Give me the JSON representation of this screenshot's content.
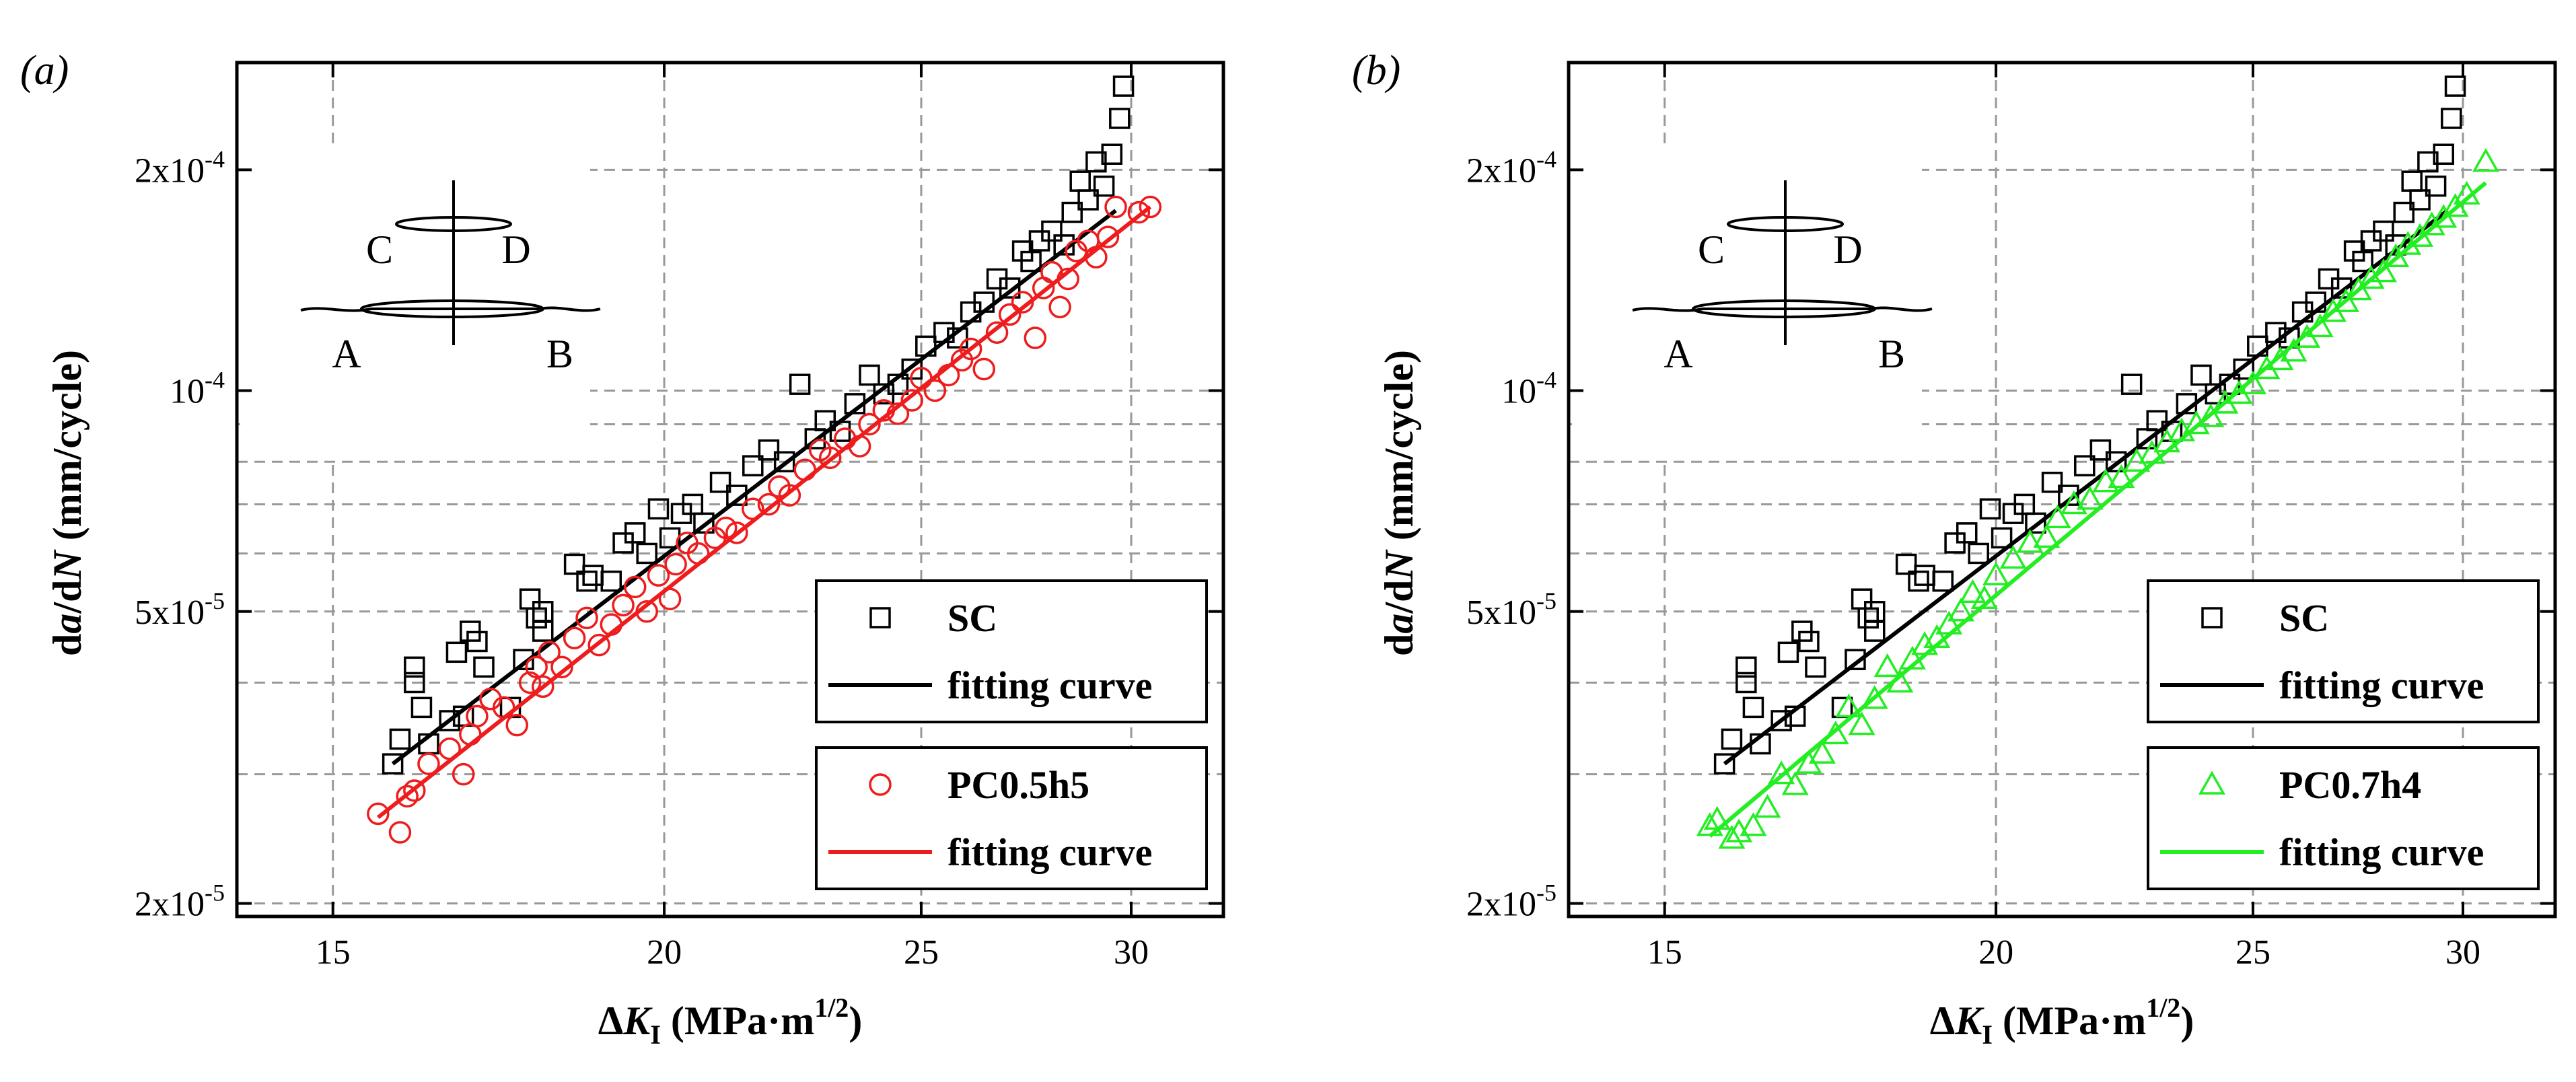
{
  "chart_data": [
    {
      "type": "scatter",
      "panel_label": "(a)",
      "xlabel": {
        "prefix": "Δ",
        "var": "K",
        "sub": "I",
        "units_pre": " (MPa·m",
        "sup": "1/2",
        "units_post": ")"
      },
      "ylabel": {
        "pre": "d",
        "var1": "a",
        "mid": "/d",
        "var2": "N",
        "post": " (mm/cycle)"
      },
      "x_scale": "log",
      "y_scale": "log",
      "xlim": [
        13.8,
        32.5
      ],
      "ylim": [
        1.92e-05,
        0.00028
      ],
      "xticks": [
        {
          "value": 15,
          "label": "15"
        },
        {
          "value": 20,
          "label": "20"
        },
        {
          "value": 25,
          "label": "25"
        },
        {
          "value": 30,
          "label": "30"
        }
      ],
      "yticks": [
        {
          "value": 2e-05,
          "base": "2x10",
          "exp": "-5"
        },
        {
          "value": 5e-05,
          "base": "5x10",
          "exp": "-5"
        },
        {
          "value": 0.0001,
          "base": "10",
          "exp": "-4"
        },
        {
          "value": 0.0002,
          "base": "2x10",
          "exp": "-4"
        }
      ],
      "inset_labels": [
        "C",
        "D",
        "A",
        "B"
      ],
      "series": [
        {
          "name": "SC",
          "marker": "square",
          "color": "#000000",
          "x": [
            15.8,
            15.9,
            16.1,
            16.1,
            16.2,
            16.3,
            16.6,
            16.7,
            16.8,
            16.9,
            17.0,
            17.1,
            17.5,
            17.7,
            17.8,
            17.9,
            18.0,
            18.0,
            18.5,
            18.7,
            18.8,
            19.1,
            19.3,
            19.5,
            19.7,
            19.9,
            20.1,
            20.3,
            20.5,
            20.7,
            21.0,
            21.3,
            21.6,
            21.9,
            22.2,
            22.5,
            22.8,
            23.0,
            23.3,
            23.6,
            23.9,
            24.2,
            24.5,
            24.8,
            25.1,
            25.5,
            25.8,
            26.1,
            26.4,
            26.7,
            27.0,
            27.3,
            27.5,
            27.7,
            28.0,
            28.3,
            28.5,
            28.7,
            28.9,
            29.1,
            29.3,
            29.5,
            29.7,
            29.8
          ],
          "y": [
            3.1e-05,
            3.35e-05,
            4.2e-05,
            4e-05,
            3.7e-05,
            3.3e-05,
            3.55e-05,
            4.4e-05,
            3.6e-05,
            4.7e-05,
            4.55e-05,
            4.2e-05,
            3.7e-05,
            4.3e-05,
            5.2e-05,
            4.9e-05,
            5e-05,
            4.7e-05,
            5.8e-05,
            5.5e-05,
            5.6e-05,
            5.5e-05,
            6.2e-05,
            6.4e-05,
            6e-05,
            6.9e-05,
            6.3e-05,
            6.8e-05,
            7e-05,
            6.6e-05,
            7.5e-05,
            7.2e-05,
            7.9e-05,
            8.3e-05,
            8e-05,
            0.000102,
            8.6e-05,
            9.1e-05,
            8.8e-05,
            9.6e-05,
            0.000105,
            9.9e-05,
            0.000102,
            0.000107,
            0.000115,
            0.00012,
            0.000118,
            0.000128,
            0.000132,
            0.000142,
            0.000138,
            0.000155,
            0.00015,
            0.00016,
            0.000165,
            0.000158,
            0.000175,
            0.000193,
            0.000182,
            0.000205,
            0.00019,
            0.00021,
            0.000235,
            0.00026
          ]
        },
        {
          "name": "fitting curve",
          "kind": "line",
          "color": "#000000",
          "x": [
            15.8,
            29.6
          ],
          "y": [
            3.1e-05,
            0.000176
          ]
        },
        {
          "name": "PC0.5h5",
          "marker": "circle",
          "color": "#ee1c1c",
          "x": [
            15.6,
            15.9,
            16.0,
            16.1,
            16.3,
            16.6,
            16.8,
            16.9,
            17.0,
            17.2,
            17.4,
            17.6,
            17.8,
            17.9,
            18.0,
            18.1,
            18.3,
            18.5,
            18.7,
            18.9,
            19.1,
            19.3,
            19.5,
            19.7,
            19.9,
            20.1,
            20.2,
            20.4,
            20.6,
            20.9,
            21.1,
            21.3,
            21.6,
            21.9,
            22.1,
            22.3,
            22.6,
            22.9,
            23.1,
            23.4,
            23.7,
            23.9,
            24.2,
            24.5,
            24.8,
            25.0,
            25.3,
            25.6,
            25.9,
            26.1,
            26.4,
            26.7,
            27.0,
            27.3,
            27.6,
            27.8,
            28.0,
            28.2,
            28.4,
            28.6,
            28.9,
            29.1,
            29.4,
            29.6,
            30.2,
            30.5
          ],
          "y": [
            2.65e-05,
            2.5e-05,
            2.8e-05,
            2.85e-05,
            3.1e-05,
            3.25e-05,
            3e-05,
            3.4e-05,
            3.6e-05,
            3.8e-05,
            3.7e-05,
            3.5e-05,
            4e-05,
            4.2e-05,
            3.95e-05,
            4.4e-05,
            4.2e-05,
            4.6e-05,
            4.9e-05,
            4.5e-05,
            4.8e-05,
            5.1e-05,
            5.4e-05,
            5e-05,
            5.6e-05,
            5.2e-05,
            5.8e-05,
            6.2e-05,
            6e-05,
            6.3e-05,
            6.5e-05,
            6.4e-05,
            6.9e-05,
            7e-05,
            7.4e-05,
            7.2e-05,
            7.8e-05,
            8.3e-05,
            8.1e-05,
            8.6e-05,
            8.4e-05,
            9e-05,
            9.4e-05,
            9.3e-05,
            9.7e-05,
            0.000104,
            0.0001,
            0.000105,
            0.00011,
            0.000114,
            0.000107,
            0.00012,
            0.000127,
            0.000132,
            0.000118,
            0.000138,
            0.000145,
            0.00013,
            0.000142,
            0.000155,
            0.00016,
            0.000152,
            0.000162,
            0.000178,
            0.000175,
            0.000178
          ]
        },
        {
          "name": "fitting curve",
          "kind": "line",
          "color": "#ee1c1c",
          "x": [
            15.6,
            30.5
          ],
          "y": [
            2.62e-05,
            0.000178
          ]
        }
      ],
      "legend": [
        {
          "entries": [
            {
              "marker": "square",
              "color": "#000000",
              "label": "SC"
            },
            {
              "line": true,
              "color": "#000000",
              "label": "fitting curve"
            }
          ]
        },
        {
          "entries": [
            {
              "marker": "circle",
              "color": "#ee1c1c",
              "label": "PC0.5h5"
            },
            {
              "line": true,
              "color": "#ee1c1c",
              "label": "fitting curve"
            }
          ]
        }
      ]
    },
    {
      "type": "scatter",
      "panel_label": "(b)",
      "xlabel": {
        "prefix": "Δ",
        "var": "K",
        "sub": "I",
        "units_pre": " (MPa·m",
        "sup": "1/2",
        "units_post": ")"
      },
      "ylabel": {
        "pre": "d",
        "var1": "a",
        "mid": "/d",
        "var2": "N",
        "post": " (mm/cycle)"
      },
      "x_scale": "log",
      "y_scale": "log",
      "xlim": [
        13.8,
        32.5
      ],
      "ylim": [
        1.92e-05,
        0.00028
      ],
      "xticks": [
        {
          "value": 15,
          "label": "15"
        },
        {
          "value": 20,
          "label": "20"
        },
        {
          "value": 25,
          "label": "25"
        },
        {
          "value": 30,
          "label": "30"
        }
      ],
      "yticks": [
        {
          "value": 2e-05,
          "base": "2x10",
          "exp": "-5"
        },
        {
          "value": 5e-05,
          "base": "5x10",
          "exp": "-5"
        },
        {
          "value": 0.0001,
          "base": "10",
          "exp": "-4"
        },
        {
          "value": 0.0002,
          "base": "2x10",
          "exp": "-4"
        }
      ],
      "inset_labels": [
        "C",
        "D",
        "A",
        "B"
      ],
      "series": [
        {
          "name": "SC",
          "marker": "square",
          "color": "#000000",
          "x": [
            15.8,
            15.9,
            16.1,
            16.1,
            16.2,
            16.3,
            16.6,
            16.7,
            16.8,
            16.9,
            17.0,
            17.1,
            17.5,
            17.7,
            17.8,
            17.9,
            18.0,
            18.0,
            18.5,
            18.7,
            18.8,
            19.1,
            19.3,
            19.5,
            19.7,
            19.9,
            20.1,
            20.3,
            20.5,
            20.7,
            21.0,
            21.3,
            21.6,
            21.9,
            22.2,
            22.5,
            22.8,
            23.0,
            23.3,
            23.6,
            23.9,
            24.2,
            24.5,
            24.8,
            25.1,
            25.5,
            25.8,
            26.1,
            26.4,
            26.7,
            27.0,
            27.3,
            27.5,
            27.7,
            28.0,
            28.3,
            28.5,
            28.7,
            28.9,
            29.1,
            29.3,
            29.5,
            29.7,
            29.8
          ],
          "y": [
            3.1e-05,
            3.35e-05,
            4.2e-05,
            4e-05,
            3.7e-05,
            3.3e-05,
            3.55e-05,
            4.4e-05,
            3.6e-05,
            4.7e-05,
            4.55e-05,
            4.2e-05,
            3.7e-05,
            4.3e-05,
            5.2e-05,
            4.9e-05,
            5e-05,
            4.7e-05,
            5.8e-05,
            5.5e-05,
            5.6e-05,
            5.5e-05,
            6.2e-05,
            6.4e-05,
            6e-05,
            6.9e-05,
            6.3e-05,
            6.8e-05,
            7e-05,
            6.6e-05,
            7.5e-05,
            7.2e-05,
            7.9e-05,
            8.3e-05,
            8e-05,
            0.000102,
            8.6e-05,
            9.1e-05,
            8.8e-05,
            9.6e-05,
            0.000105,
            9.9e-05,
            0.000102,
            0.000107,
            0.000115,
            0.00012,
            0.000118,
            0.000128,
            0.000132,
            0.000142,
            0.000138,
            0.000155,
            0.00015,
            0.00016,
            0.000165,
            0.000158,
            0.000175,
            0.000193,
            0.000182,
            0.000205,
            0.00019,
            0.00021,
            0.000235,
            0.00026
          ]
        },
        {
          "name": "fitting curve",
          "kind": "line",
          "color": "#000000",
          "x": [
            15.8,
            29.6
          ],
          "y": [
            3.1e-05,
            0.000176
          ]
        },
        {
          "name": "PC0.7h4",
          "marker": "triangle",
          "color": "#22ee22",
          "x": [
            15.6,
            15.7,
            15.9,
            16.0,
            16.2,
            16.4,
            16.6,
            16.8,
            17.0,
            17.2,
            17.4,
            17.6,
            17.8,
            18.0,
            18.2,
            18.4,
            18.6,
            18.8,
            19.0,
            19.2,
            19.4,
            19.6,
            19.8,
            20.0,
            20.3,
            20.6,
            20.9,
            21.1,
            21.4,
            21.7,
            22.0,
            22.3,
            22.6,
            22.9,
            23.2,
            23.5,
            23.8,
            24.1,
            24.4,
            24.7,
            25.0,
            25.3,
            25.6,
            25.9,
            26.2,
            26.5,
            26.8,
            27.1,
            27.4,
            27.7,
            28.0,
            28.3,
            28.6,
            28.9,
            29.2,
            29.5,
            29.8,
            30.1,
            30.6
          ],
          "y": [
            2.55e-05,
            2.6e-05,
            2.45e-05,
            2.5e-05,
            2.55e-05,
            2.7e-05,
            3e-05,
            2.9e-05,
            3.1e-05,
            3.2e-05,
            3.4e-05,
            3.7e-05,
            3.5e-05,
            3.8e-05,
            4.2e-05,
            4e-05,
            4.3e-05,
            4.5e-05,
            4.6e-05,
            4.8e-05,
            5e-05,
            5.3e-05,
            5.2e-05,
            5.6e-05,
            5.9e-05,
            6.2e-05,
            6.3e-05,
            6.7e-05,
            7e-05,
            7.1e-05,
            7.5e-05,
            7.6e-05,
            8e-05,
            8.2e-05,
            8.5e-05,
            8.8e-05,
            9e-05,
            9.2e-05,
            9.6e-05,
            9.9e-05,
            0.000102,
            0.000107,
            0.00011,
            0.000113,
            0.000118,
            0.000122,
            0.000128,
            0.000132,
            0.000137,
            0.000142,
            0.000145,
            0.000152,
            0.000158,
            0.000162,
            0.000168,
            0.000172,
            0.000178,
            0.000185,
            0.000205
          ]
        },
        {
          "name": "fitting curve",
          "kind": "line",
          "color": "#22ee22",
          "x": [
            15.6,
            30.6
          ],
          "y": [
            2.47e-05,
            0.000192
          ]
        }
      ],
      "legend": [
        {
          "entries": [
            {
              "marker": "square",
              "color": "#000000",
              "label": "SC"
            },
            {
              "line": true,
              "color": "#000000",
              "label": "fitting curve"
            }
          ]
        },
        {
          "entries": [
            {
              "marker": "triangle",
              "color": "#22ee22",
              "label": "PC0.7h4"
            },
            {
              "line": true,
              "color": "#22ee22",
              "label": "fitting curve"
            }
          ]
        }
      ]
    }
  ]
}
